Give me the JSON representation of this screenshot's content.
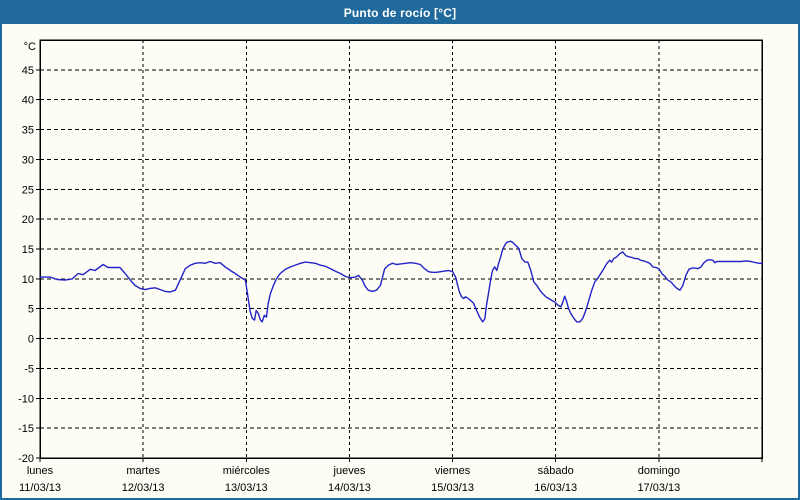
{
  "window": {
    "title": "Punto de rocío [°C]"
  },
  "colors": {
    "accent": "#20699c",
    "titlebar_bg": "#20699c",
    "titlebar_text": "#ffffff",
    "border": "#20699c",
    "plot_bg": "#fdfdf5",
    "frame": "#000000",
    "grid": "#000000",
    "axis_text": "#000000",
    "line": "#2323c8"
  },
  "chart_data": {
    "type": "line",
    "title": "Punto de rocío [°C]",
    "ylabel": "°C",
    "ylim": [
      -20,
      50
    ],
    "ytick_step": 5,
    "yticks": [
      45,
      40,
      35,
      30,
      25,
      20,
      15,
      10,
      5,
      0,
      -5,
      -10,
      -15,
      -20
    ],
    "grid": "dashed",
    "legend": "none",
    "x_unit": "hours_since_start",
    "xlim": [
      0,
      168
    ],
    "x_days": [
      {
        "name": "lunes",
        "date": "11/03/13"
      },
      {
        "name": "martes",
        "date": "12/03/13"
      },
      {
        "name": "miércoles",
        "date": "13/03/13"
      },
      {
        "name": "jueves",
        "date": "14/03/13"
      },
      {
        "name": "viernes",
        "date": "15/03/13"
      },
      {
        "name": "sábado",
        "date": "16/03/13"
      },
      {
        "name": "domingo",
        "date": "17/03/13"
      }
    ],
    "series": [
      {
        "name": "Punto de rocío",
        "color": "#2323c8",
        "points": [
          [
            0,
            10.3
          ],
          [
            2.3,
            10.3
          ],
          [
            4,
            9.9
          ],
          [
            5.8,
            9.8
          ],
          [
            7.5,
            10
          ],
          [
            8.9,
            10.9
          ],
          [
            10,
            10.7
          ],
          [
            11.7,
            11.6
          ],
          [
            12.8,
            11.4
          ],
          [
            14.7,
            12.4
          ],
          [
            15.8,
            11.9
          ],
          [
            17,
            11.9
          ],
          [
            18.6,
            11.9
          ],
          [
            19.8,
            10.9
          ],
          [
            21,
            9.8
          ],
          [
            22.1,
            8.9
          ],
          [
            23.3,
            8.4
          ],
          [
            24.5,
            8.2
          ],
          [
            25.6,
            8.4
          ],
          [
            26.8,
            8.5
          ],
          [
            28,
            8.2
          ],
          [
            29.1,
            7.9
          ],
          [
            30.3,
            7.8
          ],
          [
            31.5,
            8.1
          ],
          [
            32.6,
            9.8
          ],
          [
            33.8,
            11.7
          ],
          [
            35,
            12.3
          ],
          [
            36.1,
            12.6
          ],
          [
            37.3,
            12.7
          ],
          [
            38.4,
            12.6
          ],
          [
            39.6,
            12.9
          ],
          [
            40.8,
            12.6
          ],
          [
            41.9,
            12.7
          ],
          [
            43.1,
            12
          ],
          [
            44.3,
            11.4
          ],
          [
            45.4,
            10.9
          ],
          [
            46.6,
            10.3
          ],
          [
            47.8,
            9.8
          ],
          [
            48.9,
            4.5
          ],
          [
            49.4,
            3.4
          ],
          [
            49.9,
            3.1
          ],
          [
            50.3,
            4.7
          ],
          [
            50.8,
            4.2
          ],
          [
            51.3,
            3.1
          ],
          [
            51.7,
            2.8
          ],
          [
            52.2,
            3.9
          ],
          [
            52.7,
            3.6
          ],
          [
            53.1,
            5.9
          ],
          [
            53.6,
            7.5
          ],
          [
            54.3,
            8.9
          ],
          [
            55,
            10
          ],
          [
            55.9,
            10.9
          ],
          [
            57.1,
            11.6
          ],
          [
            58.3,
            12
          ],
          [
            59.4,
            12.3
          ],
          [
            60.6,
            12.6
          ],
          [
            61.7,
            12.8
          ],
          [
            62.9,
            12.7
          ],
          [
            64.1,
            12.6
          ],
          [
            65.2,
            12.3
          ],
          [
            66.4,
            12.1
          ],
          [
            67.6,
            11.7
          ],
          [
            68.7,
            11.3
          ],
          [
            69.9,
            10.9
          ],
          [
            71.1,
            10.4
          ],
          [
            72.2,
            10.2
          ],
          [
            73.4,
            10.3
          ],
          [
            74.1,
            10.6
          ],
          [
            75,
            9.8
          ],
          [
            75.7,
            8.7
          ],
          [
            76.4,
            8.1
          ],
          [
            77.4,
            7.9
          ],
          [
            78.3,
            8.1
          ],
          [
            79.2,
            8.9
          ],
          [
            80.2,
            11.7
          ],
          [
            81.1,
            12.3
          ],
          [
            82,
            12.6
          ],
          [
            83,
            12.4
          ],
          [
            83.9,
            12.5
          ],
          [
            85.1,
            12.6
          ],
          [
            86.2,
            12.7
          ],
          [
            87.4,
            12.6
          ],
          [
            88.5,
            12.4
          ],
          [
            89.5,
            11.7
          ],
          [
            90.4,
            11.2
          ],
          [
            91.3,
            11.1
          ],
          [
            92.3,
            11.1
          ],
          [
            93.2,
            11.2
          ],
          [
            94.1,
            11.3
          ],
          [
            95.1,
            11.4
          ],
          [
            96,
            11.2
          ],
          [
            96.7,
            10.3
          ],
          [
            97.2,
            8.9
          ],
          [
            97.6,
            7.8
          ],
          [
            98.1,
            7
          ],
          [
            98.6,
            6.7
          ],
          [
            99,
            7
          ],
          [
            99.5,
            6.8
          ],
          [
            100.2,
            6.4
          ],
          [
            100.9,
            5.9
          ],
          [
            101.6,
            4.7
          ],
          [
            102.3,
            3.6
          ],
          [
            103,
            2.8
          ],
          [
            103.5,
            3.3
          ],
          [
            103.9,
            5.6
          ],
          [
            104.4,
            7.8
          ],
          [
            104.9,
            10
          ],
          [
            105.3,
            11.4
          ],
          [
            105.8,
            12
          ],
          [
            106.3,
            11.4
          ],
          [
            106.7,
            12.6
          ],
          [
            107.2,
            13.7
          ],
          [
            107.6,
            14.8
          ],
          [
            108.1,
            15.6
          ],
          [
            108.6,
            16.1
          ],
          [
            109,
            16.2
          ],
          [
            109.5,
            16.3
          ],
          [
            110,
            16.1
          ],
          [
            110.7,
            15.6
          ],
          [
            111.4,
            15.1
          ],
          [
            112.1,
            13.4
          ],
          [
            112.8,
            12.8
          ],
          [
            113.5,
            12.8
          ],
          [
            114.2,
            11.4
          ],
          [
            114.9,
            9.5
          ],
          [
            115.6,
            8.9
          ],
          [
            116.3,
            8.1
          ],
          [
            117,
            7.5
          ],
          [
            117.7,
            7
          ],
          [
            118.4,
            6.7
          ],
          [
            119.1,
            6.4
          ],
          [
            119.8,
            6.1
          ],
          [
            120.5,
            5.6
          ],
          [
            121.2,
            5.3
          ],
          [
            121.6,
            6
          ],
          [
            122.1,
            7.1
          ],
          [
            122.5,
            6.3
          ],
          [
            123,
            5
          ],
          [
            123.5,
            4.2
          ],
          [
            124.2,
            3.4
          ],
          [
            124.9,
            2.8
          ],
          [
            125.6,
            2.8
          ],
          [
            126.3,
            3.4
          ],
          [
            127,
            4.7
          ],
          [
            127.7,
            6.4
          ],
          [
            128.4,
            8.1
          ],
          [
            129.1,
            9.5
          ],
          [
            129.8,
            10.1
          ],
          [
            130.5,
            10.9
          ],
          [
            131.2,
            11.7
          ],
          [
            131.9,
            12.6
          ],
          [
            132.6,
            13.1
          ],
          [
            133,
            12.8
          ],
          [
            133.5,
            13.4
          ],
          [
            134.2,
            13.7
          ],
          [
            134.9,
            14.2
          ],
          [
            135.6,
            14.5
          ],
          [
            136.3,
            13.9
          ],
          [
            137,
            13.7
          ],
          [
            137.7,
            13.6
          ],
          [
            138.4,
            13.4
          ],
          [
            139.1,
            13.4
          ],
          [
            139.8,
            13.1
          ],
          [
            140.5,
            13
          ],
          [
            141.2,
            12.8
          ],
          [
            141.9,
            12.6
          ],
          [
            142.6,
            12
          ],
          [
            143.3,
            11.9
          ],
          [
            144,
            11.7
          ],
          [
            144.7,
            10.9
          ],
          [
            145.4,
            10.4
          ],
          [
            146.1,
            9.8
          ],
          [
            146.8,
            9.5
          ],
          [
            147.5,
            8.9
          ],
          [
            148.2,
            8.4
          ],
          [
            148.9,
            8.1
          ],
          [
            149.6,
            8.9
          ],
          [
            150.3,
            10.6
          ],
          [
            151,
            11.6
          ],
          [
            151.7,
            11.8
          ],
          [
            152.4,
            11.8
          ],
          [
            153.1,
            11.7
          ],
          [
            153.8,
            12
          ],
          [
            154.5,
            12.7
          ],
          [
            155.2,
            13.1
          ],
          [
            155.9,
            13.2
          ],
          [
            156.6,
            13.1
          ],
          [
            157,
            12.7
          ],
          [
            157.5,
            12.9
          ],
          [
            158.4,
            12.9
          ],
          [
            159.6,
            12.9
          ],
          [
            160.8,
            12.9
          ],
          [
            161.9,
            12.9
          ],
          [
            163.1,
            12.9
          ],
          [
            164.3,
            13
          ],
          [
            165.4,
            12.9
          ],
          [
            166.6,
            12.7
          ],
          [
            167.3,
            12.6
          ],
          [
            168,
            12.6
          ]
        ]
      }
    ]
  }
}
